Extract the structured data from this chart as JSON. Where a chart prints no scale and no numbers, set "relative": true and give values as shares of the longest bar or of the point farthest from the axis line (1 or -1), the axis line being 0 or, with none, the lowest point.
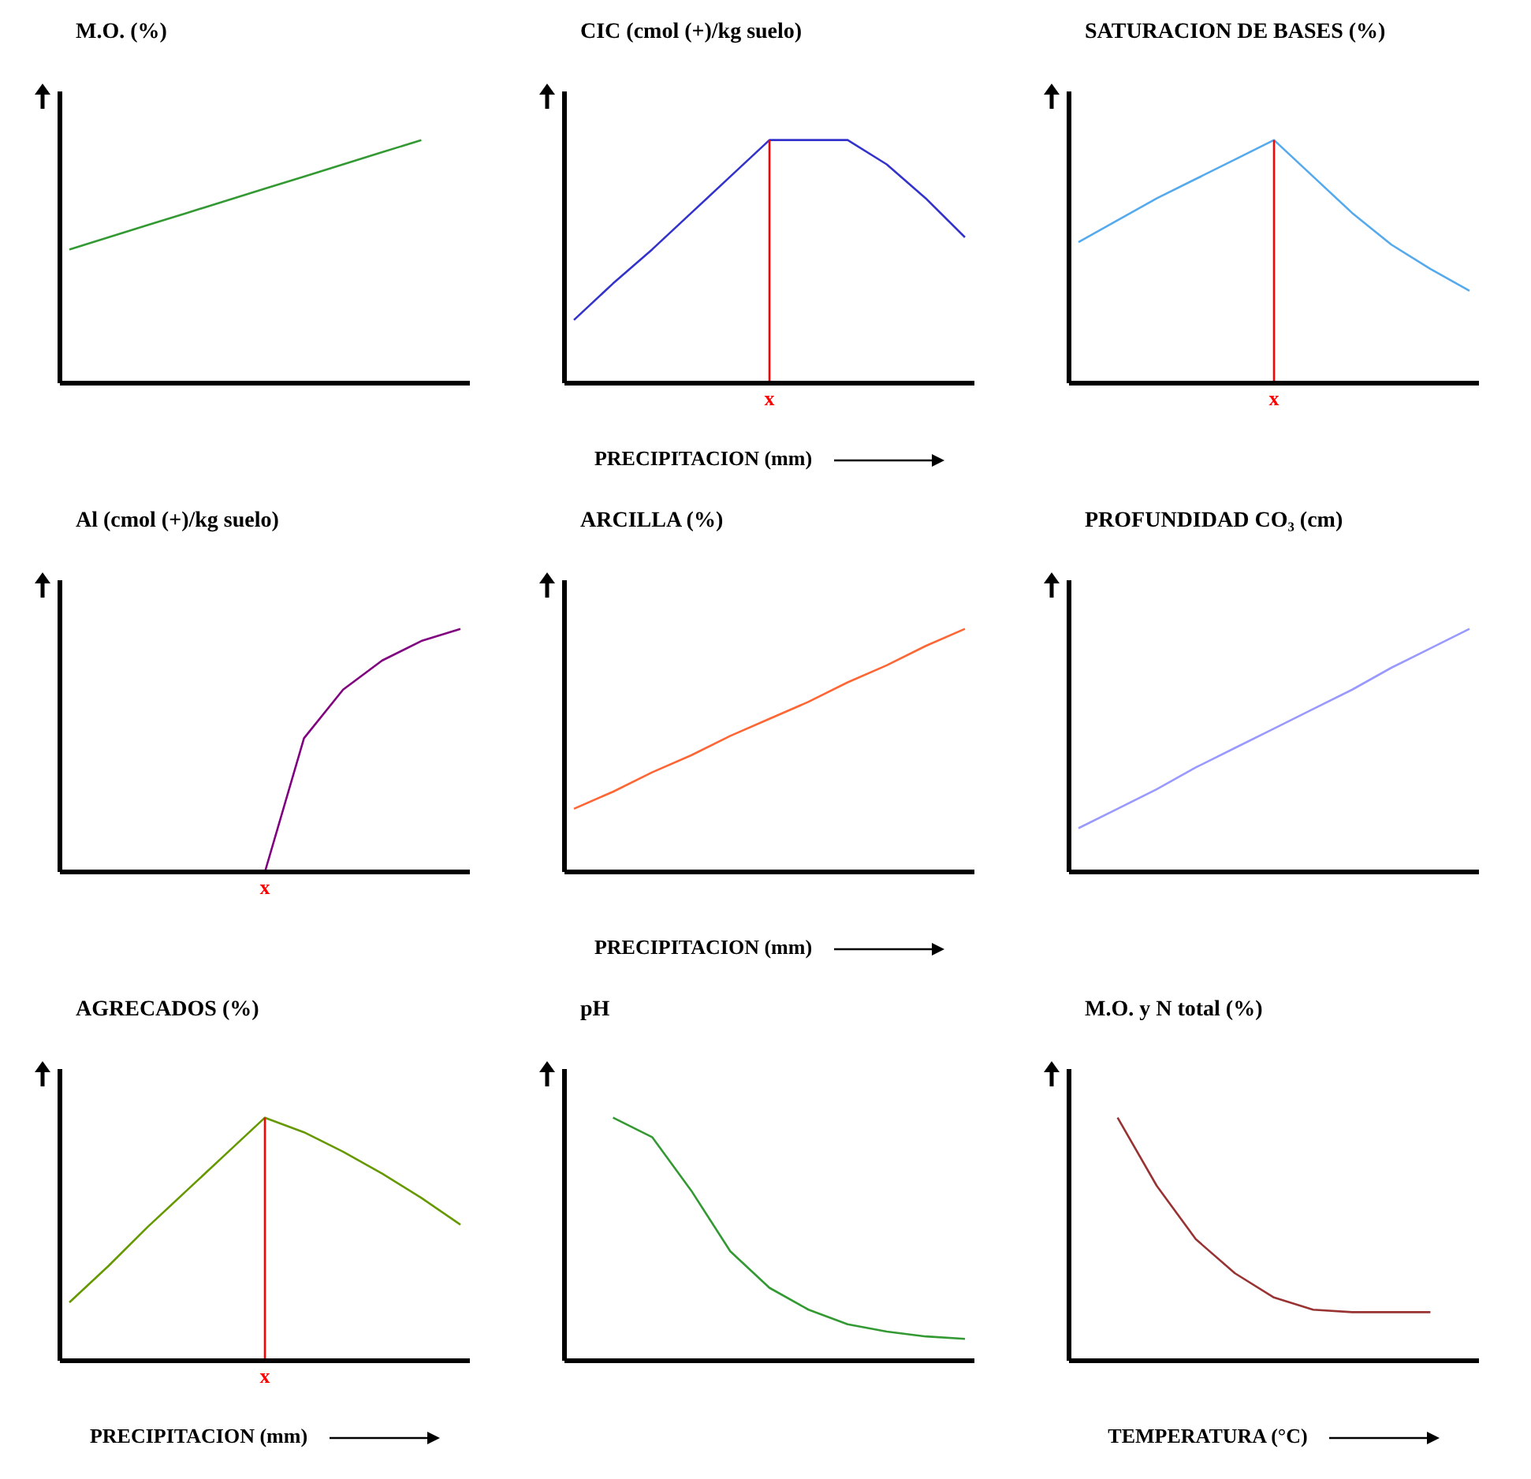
{
  "chart_data": [
    {
      "type": "line",
      "title": "M.O. (%)",
      "relative": true,
      "color": "#339933",
      "categories": [
        null,
        null,
        null,
        null,
        null,
        null,
        null,
        null,
        null,
        null,
        null
      ],
      "values": [
        0.55,
        0.6,
        0.65,
        0.7,
        0.75,
        0.8,
        0.85,
        0.9,
        0.95,
        1.0,
        null
      ]
    },
    {
      "type": "line",
      "title": "CIC  (cmol (+)/kg suelo)",
      "xlabel": "PRECIPITACION (mm)",
      "relative": true,
      "color": "#3333cc",
      "categories": [
        null,
        null,
        null,
        null,
        null,
        null,
        null,
        null,
        null,
        null,
        null
      ],
      "values": [
        0.26,
        0.41,
        0.55,
        0.7,
        0.85,
        1.0,
        1.0,
        1.0,
        0.9,
        0.76,
        0.6
      ],
      "annotations": [
        "x"
      ]
    },
    {
      "type": "line",
      "title": "SATURACION DE  BASES (%)",
      "relative": true,
      "color": "#55aaee",
      "categories": [
        null,
        null,
        null,
        null,
        null,
        null,
        null,
        null,
        null,
        null,
        null
      ],
      "values": [
        0.58,
        0.67,
        0.76,
        0.84,
        0.92,
        1.0,
        0.85,
        0.7,
        0.57,
        0.47,
        0.38
      ],
      "annotations": [
        "x"
      ]
    },
    {
      "type": "line",
      "title": "Al (cmol (+)/kg suelo)",
      "relative": true,
      "color": "#800080",
      "categories": [
        null,
        null,
        null,
        null,
        null,
        null,
        null,
        null,
        null,
        null,
        null
      ],
      "values": [
        null,
        null,
        null,
        null,
        null,
        0,
        0.55,
        0.75,
        0.87,
        0.95,
        1.0
      ],
      "annotations": [
        "x"
      ]
    },
    {
      "type": "line",
      "title": "ARCILLA  (%)",
      "xlabel": "PRECIPITACION (mm)",
      "relative": true,
      "color": "#ff6633",
      "categories": [
        null,
        null,
        null,
        null,
        null,
        null,
        null,
        null,
        null,
        null,
        null
      ],
      "values": [
        0.26,
        0.33,
        0.41,
        0.48,
        0.56,
        0.63,
        0.7,
        0.78,
        0.85,
        0.93,
        1.0
      ]
    },
    {
      "type": "line",
      "title": "PROFUNDIDAD CO₃ (cm)",
      "relative": true,
      "color": "#9999ff",
      "categories": [
        null,
        null,
        null,
        null,
        null,
        null,
        null,
        null,
        null,
        null,
        null
      ],
      "values": [
        0.18,
        0.26,
        0.34,
        0.43,
        0.51,
        0.59,
        0.67,
        0.75,
        0.84,
        0.92,
        1.0
      ]
    },
    {
      "type": "line",
      "title": "AGRECADOS (%)",
      "xlabel": "PRECIPITACION (mm)",
      "relative": true,
      "color": "#669900",
      "categories": [
        null,
        null,
        null,
        null,
        null,
        null,
        null,
        null,
        null,
        null,
        null
      ],
      "values": [
        0.24,
        0.39,
        0.55,
        0.7,
        0.85,
        1.0,
        0.94,
        0.86,
        0.77,
        0.67,
        0.56
      ],
      "annotations": [
        "x"
      ]
    },
    {
      "type": "line",
      "title": "pH",
      "relative": true,
      "color": "#339933",
      "categories": [
        null,
        null,
        null,
        null,
        null,
        null,
        null,
        null,
        null,
        null,
        null
      ],
      "values": [
        null,
        1.0,
        0.92,
        0.7,
        0.45,
        0.3,
        0.21,
        0.15,
        0.12,
        0.1,
        0.09
      ]
    },
    {
      "type": "line",
      "title": "M.O. y N total   (%)",
      "xlabel": "TEMPERATURA (°C)",
      "relative": true,
      "color": "#993333",
      "categories": [
        null,
        null,
        null,
        null,
        null,
        null,
        null,
        null,
        null,
        null,
        null
      ],
      "values": [
        null,
        1.0,
        0.72,
        0.5,
        0.36,
        0.26,
        0.21,
        0.2,
        0.2,
        0.2,
        null
      ]
    }
  ]
}
